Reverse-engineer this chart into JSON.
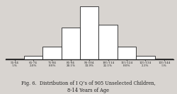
{
  "categories": [
    "55-64",
    "65-74",
    "75-84",
    "85-94",
    "95-104",
    "105-114",
    "115-124",
    "125-134",
    "135-144"
  ],
  "percentages": [
    ".5%",
    "2.0%",
    "8.0%",
    "20.1%",
    "33.9%",
    "22.1%",
    "8.0%",
    "2.1%",
    ".5%"
  ],
  "values": [
    0.5,
    2.0,
    8.0,
    20.1,
    33.9,
    22.1,
    8.0,
    2.1,
    0.5
  ],
  "title_line1": "Fig. 6.  Distribution of I Q’s of 905 Unselected Children,",
  "title_line2": "8-14 Years of Age",
  "title_fontsize": 4.8,
  "bar_color": "#ffffff",
  "edge_color": "#222222",
  "background_color": "#d8d4d0",
  "ylim": [
    0,
    36
  ]
}
